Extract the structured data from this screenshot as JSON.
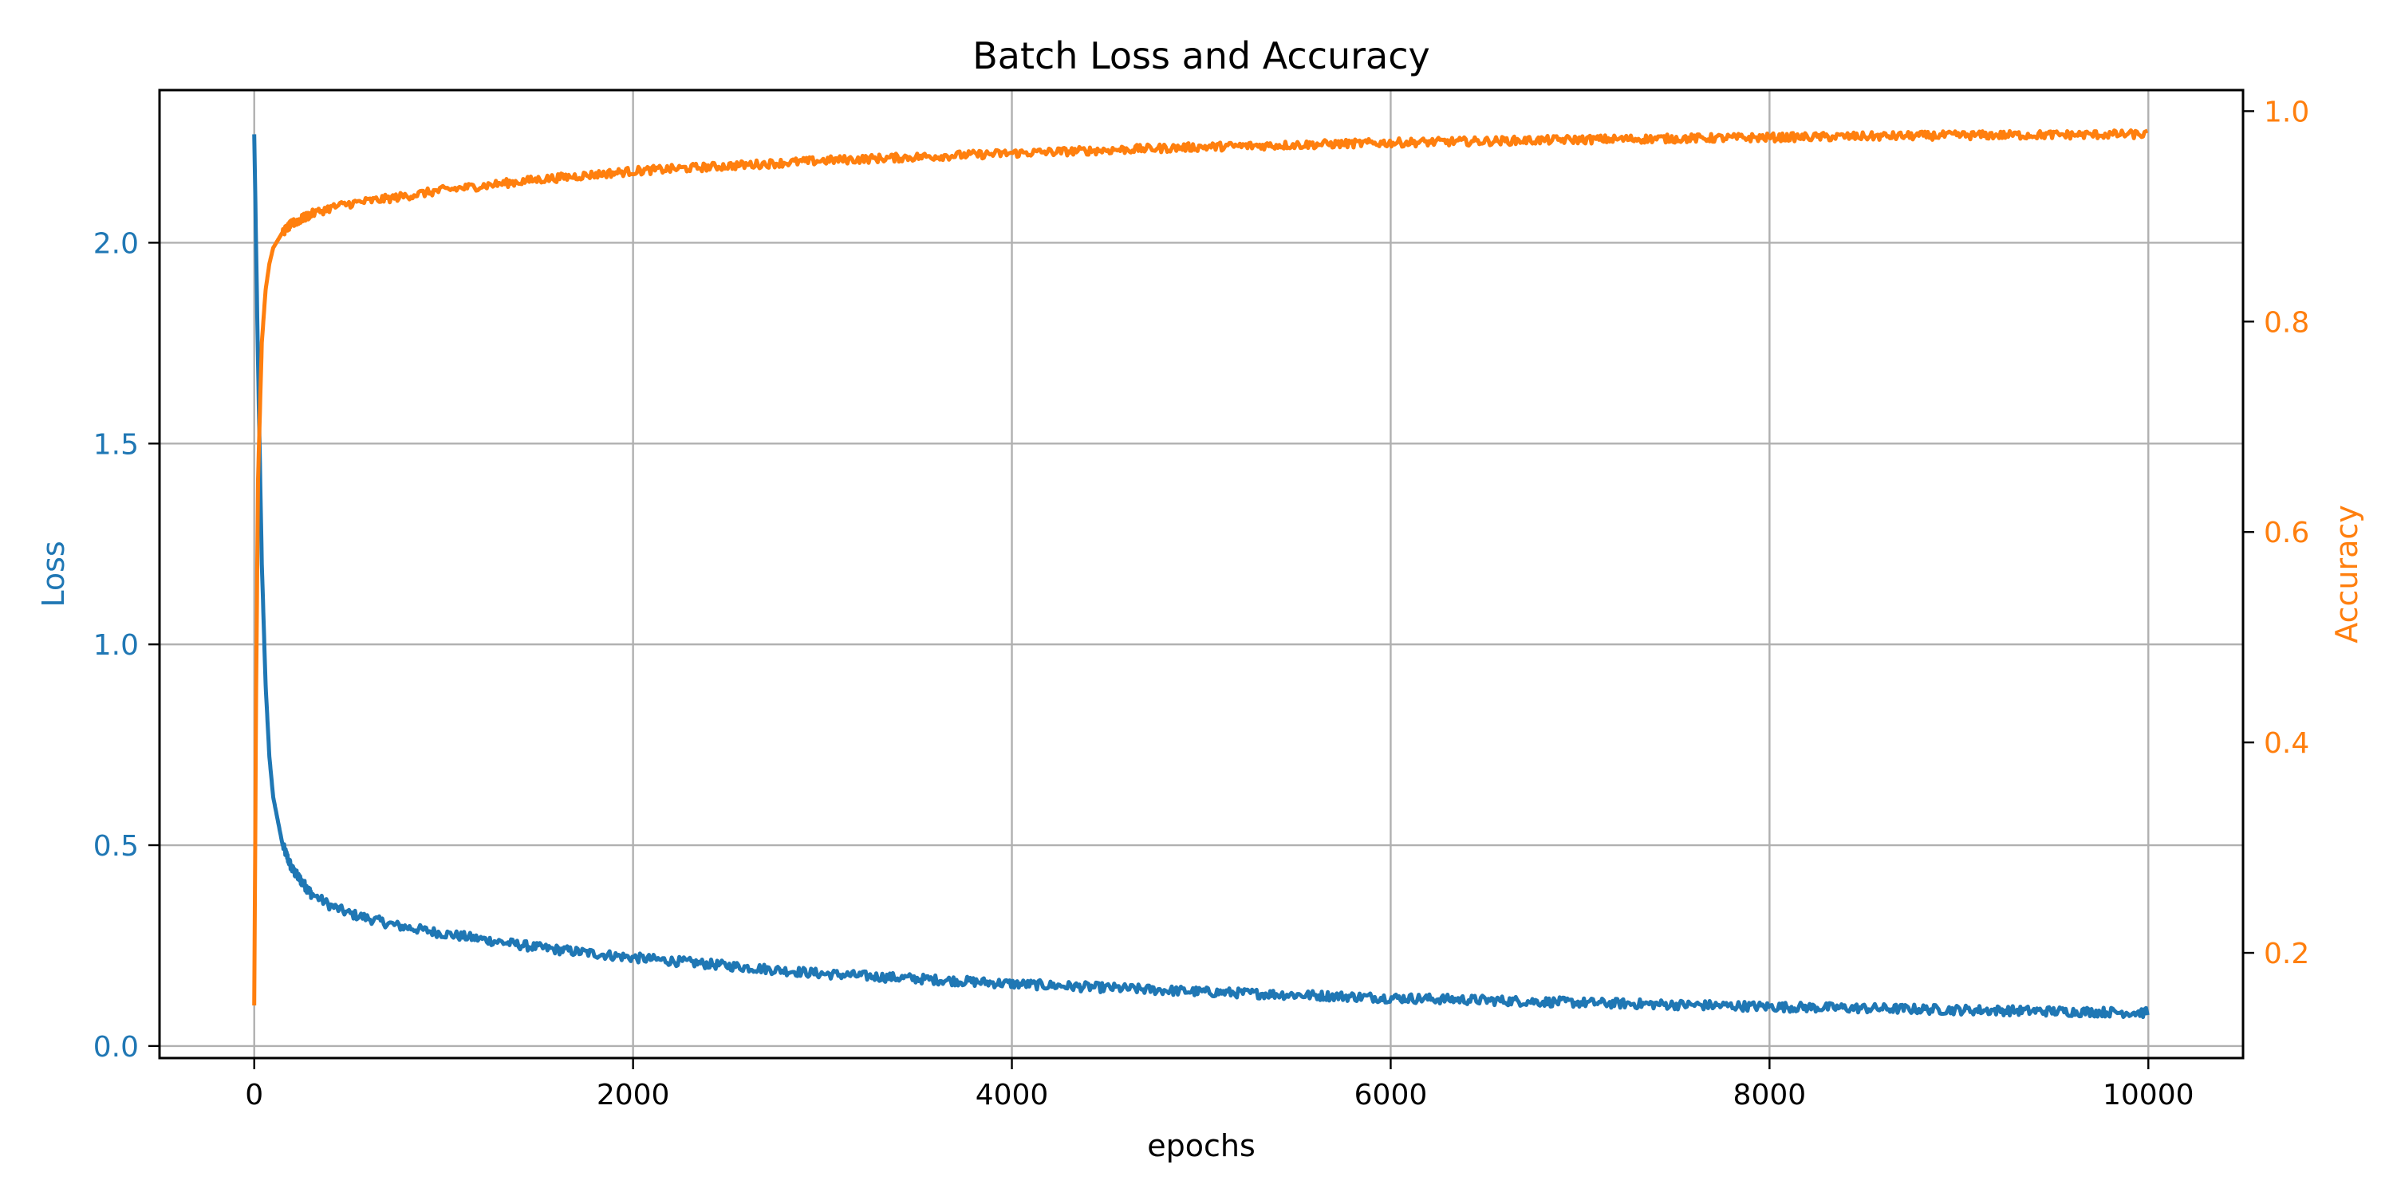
{
  "chart_data": {
    "type": "line",
    "title": "Batch Loss and Accuracy",
    "xlabel": "epochs",
    "xlim": [
      -500,
      10500
    ],
    "x_ticks": [
      0,
      2000,
      4000,
      6000,
      8000,
      10000
    ],
    "grid": true,
    "y_axes": {
      "left": {
        "label": "Loss",
        "color": "#1f77b4",
        "ylim": [
          -0.03,
          2.38
        ],
        "ticks": [
          "0.0",
          "0.5",
          "1.0",
          "1.5",
          "2.0"
        ]
      },
      "right": {
        "label": "Accuracy",
        "color": "#ff7f0e",
        "ylim": [
          0.1,
          1.02
        ],
        "ticks": [
          "0.2",
          "0.4",
          "0.6",
          "0.8",
          "1.0"
        ]
      }
    },
    "series": [
      {
        "axis": "left",
        "color": "#1f77b4",
        "x": [
          0,
          20,
          40,
          60,
          80,
          100,
          150,
          200,
          300,
          400,
          500,
          750,
          1000,
          1500,
          2000,
          3000,
          4000,
          5000,
          6000,
          7000,
          8000,
          9000,
          10000
        ],
        "values": [
          2.27,
          1.7,
          1.2,
          0.9,
          0.72,
          0.62,
          0.5,
          0.44,
          0.38,
          0.35,
          0.33,
          0.3,
          0.28,
          0.245,
          0.22,
          0.18,
          0.155,
          0.135,
          0.12,
          0.108,
          0.098,
          0.09,
          0.083
        ]
      },
      {
        "axis": "right",
        "color": "#ff7f0e",
        "x": [
          0,
          10,
          20,
          40,
          60,
          80,
          100,
          150,
          200,
          300,
          400,
          500,
          750,
          1000,
          1500,
          2000,
          3000,
          4000,
          5000,
          6000,
          7000,
          8000,
          9000,
          10000
        ],
        "values": [
          0.15,
          0.45,
          0.65,
          0.78,
          0.83,
          0.855,
          0.87,
          0.885,
          0.893,
          0.902,
          0.908,
          0.912,
          0.918,
          0.925,
          0.935,
          0.943,
          0.953,
          0.96,
          0.966,
          0.97,
          0.973,
          0.975,
          0.977,
          0.978
        ]
      }
    ]
  }
}
